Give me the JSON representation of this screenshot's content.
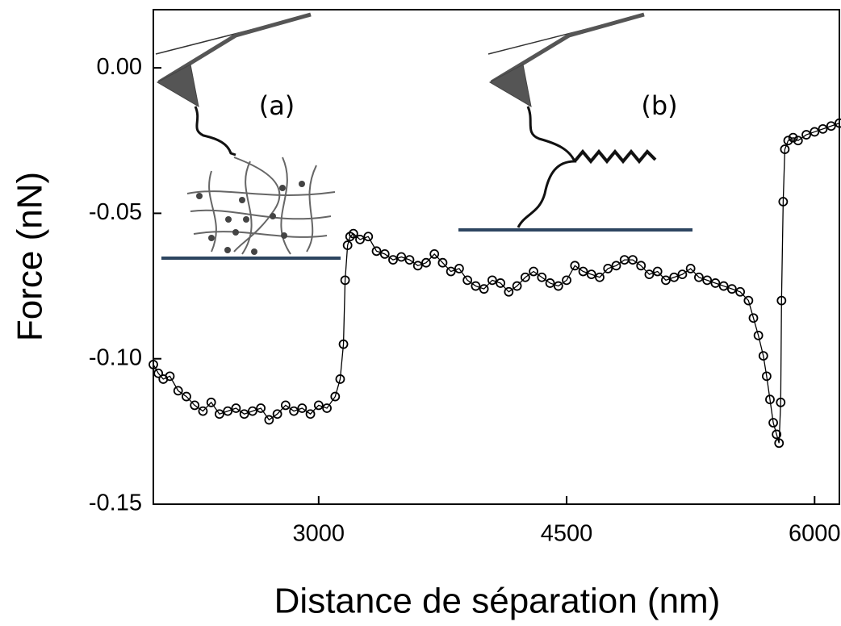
{
  "chart_data": {
    "type": "line",
    "x_label": "Distance de séparation (nm)",
    "y_label": "Force (nN)",
    "annotations": [
      "(a)",
      "(b)"
    ],
    "xlim": [
      2000,
      6150
    ],
    "ylim": [
      -0.15,
      0.02
    ],
    "xticks": [
      3000,
      4500,
      6000
    ],
    "yticks": [
      {
        "value": 0,
        "label": "0.00"
      },
      {
        "value": -0.05,
        "label": "-0.05"
      },
      {
        "value": -0.1,
        "label": "-0.10"
      },
      {
        "value": -0.15,
        "label": "-0.15"
      }
    ],
    "grid": false,
    "x": [
      2000,
      2030,
      2060,
      2100,
      2150,
      2200,
      2250,
      2300,
      2350,
      2400,
      2450,
      2500,
      2550,
      2600,
      2650,
      2700,
      2750,
      2800,
      2850,
      2900,
      2950,
      3000,
      3050,
      3100,
      3130,
      3150,
      3160,
      3175,
      3190,
      3210,
      3250,
      3300,
      3350,
      3400,
      3450,
      3500,
      3550,
      3600,
      3650,
      3700,
      3750,
      3800,
      3850,
      3900,
      3950,
      4000,
      4050,
      4100,
      4150,
      4200,
      4250,
      4300,
      4350,
      4400,
      4450,
      4500,
      4550,
      4600,
      4650,
      4700,
      4750,
      4800,
      4850,
      4900,
      4950,
      5000,
      5050,
      5100,
      5150,
      5200,
      5250,
      5300,
      5350,
      5400,
      5450,
      5500,
      5550,
      5600,
      5630,
      5660,
      5690,
      5710,
      5730,
      5750,
      5770,
      5785,
      5795,
      5800,
      5810,
      5820,
      5840,
      5870,
      5900,
      5950,
      6000,
      6050,
      6100,
      6150
    ],
    "series": [
      {
        "color": "#000000",
        "values": [
          -0.102,
          -0.105,
          -0.107,
          -0.106,
          -0.111,
          -0.113,
          -0.116,
          -0.118,
          -0.115,
          -0.119,
          -0.118,
          -0.117,
          -0.119,
          -0.118,
          -0.117,
          -0.121,
          -0.119,
          -0.116,
          -0.118,
          -0.117,
          -0.119,
          -0.116,
          -0.117,
          -0.113,
          -0.107,
          -0.095,
          -0.073,
          -0.061,
          -0.058,
          -0.057,
          -0.059,
          -0.058,
          -0.063,
          -0.064,
          -0.066,
          -0.065,
          -0.066,
          -0.068,
          -0.067,
          -0.064,
          -0.067,
          -0.07,
          -0.069,
          -0.073,
          -0.075,
          -0.076,
          -0.073,
          -0.074,
          -0.077,
          -0.075,
          -0.072,
          -0.07,
          -0.072,
          -0.074,
          -0.075,
          -0.073,
          -0.068,
          -0.07,
          -0.071,
          -0.072,
          -0.069,
          -0.068,
          -0.066,
          -0.066,
          -0.068,
          -0.071,
          -0.07,
          -0.073,
          -0.072,
          -0.071,
          -0.069,
          -0.072,
          -0.073,
          -0.074,
          -0.075,
          -0.076,
          -0.077,
          -0.08,
          -0.086,
          -0.092,
          -0.099,
          -0.106,
          -0.114,
          -0.122,
          -0.126,
          -0.129,
          -0.115,
          -0.08,
          -0.046,
          -0.028,
          -0.025,
          -0.024,
          -0.025,
          -0.023,
          -0.022,
          -0.021,
          -0.02,
          -0.019
        ]
      }
    ]
  }
}
